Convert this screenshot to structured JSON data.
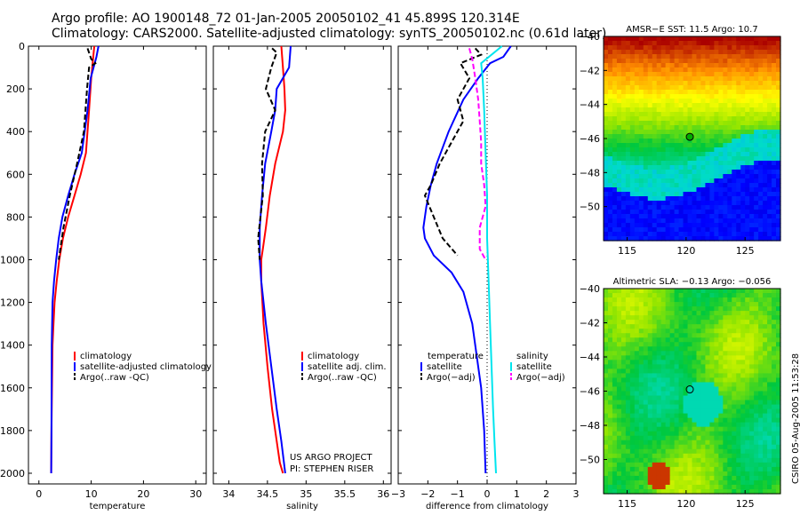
{
  "header": {
    "line1": "Argo profile: AO 1900148_72 01-Jan-2005 20050102_41 45.899S 120.314E",
    "line2": "Climatology: CARS2000. Satellite-adjusted climatology: synTS_20050102.nc (0.61d later)"
  },
  "stamp": "CSIRO 05-Aug-2005 11:53:28",
  "colors": {
    "climatology": "#ff0000",
    "satellite": "#0000ff",
    "argo": "#000000",
    "sal_sat": "#00e5ee",
    "sal_argo": "#ff00ff"
  },
  "chart_data": [
    {
      "type": "line",
      "xlabel": "temperature",
      "ylabel": "",
      "xlim": [
        -2,
        32
      ],
      "ylim": [
        2050,
        0
      ],
      "xticks": [
        "0",
        "10",
        "20",
        "30"
      ],
      "yticks": [
        "0",
        "200",
        "400",
        "600",
        "800",
        "1000",
        "1200",
        "1400",
        "1600",
        "1800",
        "2000"
      ],
      "legend": [
        "climatology",
        "satellite-adjusted climatology",
        "Argo(..raw -QC)"
      ],
      "series": [
        {
          "name": "climatology",
          "color": "#ff0000",
          "style": "solid",
          "x": [
            10.6,
            10.4,
            10.0,
            9.6,
            9.0,
            8.0,
            6.8,
            5.6,
            4.6,
            3.9,
            3.4,
            3.0,
            2.8,
            2.6,
            2.5,
            2.4,
            2.35
          ],
          "y": [
            0,
            50,
            150,
            300,
            500,
            600,
            700,
            800,
            900,
            1000,
            1100,
            1200,
            1300,
            1400,
            1600,
            1800,
            2000
          ]
        },
        {
          "name": "satellite-adjusted climatology",
          "color": "#0000ff",
          "style": "solid",
          "x": [
            11.4,
            11.0,
            9.9,
            9.3,
            8.2,
            6.8,
            5.6,
            4.5,
            3.8,
            3.3,
            2.9,
            2.6,
            2.45,
            2.4,
            2.35
          ],
          "y": [
            0,
            50,
            150,
            300,
            500,
            600,
            700,
            800,
            900,
            1000,
            1100,
            1200,
            1400,
            1800,
            2000
          ]
        },
        {
          "name": "Argo(..raw -QC)",
          "color": "#000000",
          "style": "dashed",
          "x": [
            9.3,
            10.0,
            10.8,
            9.6,
            9.2,
            8.6,
            7.3,
            5.9,
            4.7,
            3.8
          ],
          "y": [
            10,
            60,
            80,
            100,
            200,
            400,
            550,
            700,
            850,
            1000
          ]
        }
      ]
    },
    {
      "type": "line",
      "xlabel": "salinity",
      "xlim": [
        33.8,
        36.1
      ],
      "ylim": [
        2050,
        0
      ],
      "xticks": [
        "34",
        "34.5",
        "35",
        "35.5",
        "36"
      ],
      "legend": [
        "climatology",
        "satellite adj. clim.",
        "Argo(..raw -QC)"
      ],
      "annotation": [
        "US ARGO PROJECT",
        "PI: STEPHEN RISER"
      ],
      "series": [
        {
          "name": "climatology",
          "color": "#ff0000",
          "style": "solid",
          "x": [
            34.68,
            34.7,
            34.72,
            34.73,
            34.7,
            34.6,
            34.53,
            34.48,
            34.44,
            34.42,
            34.42,
            34.45,
            34.5,
            34.56,
            34.62,
            34.66,
            34.7
          ],
          "y": [
            0,
            100,
            200,
            300,
            400,
            550,
            700,
            850,
            950,
            1000,
            1100,
            1300,
            1500,
            1700,
            1850,
            1950,
            2000
          ]
        },
        {
          "name": "satellite adj. clim.",
          "color": "#0000ff",
          "style": "solid",
          "x": [
            34.8,
            34.78,
            34.62,
            34.6,
            34.55,
            34.47,
            34.43,
            34.4,
            34.4,
            34.42,
            34.48,
            34.55,
            34.62,
            34.68,
            34.73
          ],
          "y": [
            0,
            100,
            200,
            300,
            400,
            550,
            700,
            850,
            1000,
            1100,
            1300,
            1500,
            1700,
            1850,
            2000
          ]
        },
        {
          "name": "Argo(..raw -QC)",
          "color": "#000000",
          "style": "dashed",
          "x": [
            34.56,
            34.62,
            34.55,
            34.48,
            34.6,
            34.47,
            34.43,
            34.44,
            34.41,
            34.38,
            34.4
          ],
          "y": [
            10,
            30,
            100,
            200,
            300,
            400,
            550,
            700,
            800,
            900,
            1000
          ]
        }
      ]
    },
    {
      "type": "line",
      "xlabel": "difference from climatology",
      "xlim": [
        -3,
        3
      ],
      "ylim": [
        2050,
        0
      ],
      "xticks": [
        "−3",
        "−2",
        "−1",
        "0",
        "1",
        "2",
        "3"
      ],
      "legend_temperature": {
        "title": "temperature",
        "items": [
          "satellite",
          "Argo(−adj)"
        ]
      },
      "legend_salinity": {
        "title": "salinity",
        "items": [
          "satellite",
          "Argo(−adj)"
        ]
      },
      "series": [
        {
          "name": "temperature satellite",
          "color": "#0000ff",
          "style": "solid",
          "x": [
            0.8,
            0.55,
            0.1,
            -0.3,
            -0.8,
            -1.3,
            -1.7,
            -1.9,
            -2.05,
            -2.15,
            -2.1,
            -1.8,
            -1.2,
            -0.8,
            -0.5,
            -0.35,
            -0.2,
            -0.1,
            -0.05
          ],
          "y": [
            0,
            50,
            80,
            150,
            250,
            400,
            550,
            650,
            750,
            850,
            900,
            980,
            1060,
            1150,
            1300,
            1450,
            1600,
            1800,
            2000
          ]
        },
        {
          "name": "temperature Argo(−adj)",
          "color": "#000000",
          "style": "dashed",
          "x": [
            -0.4,
            -0.2,
            -0.9,
            -0.6,
            -1.0,
            -0.8,
            -1.2,
            -1.6,
            -1.9,
            -2.1,
            -1.8,
            -1.5,
            -1.0
          ],
          "y": [
            10,
            40,
            80,
            150,
            250,
            350,
            450,
            550,
            650,
            700,
            800,
            900,
            980
          ]
        },
        {
          "name": "salinity satellite",
          "color": "#00e5ee",
          "style": "solid",
          "x": [
            0.5,
            -0.2,
            -0.15,
            -0.1,
            -0.05,
            0.0,
            0.0,
            0.05,
            0.1,
            0.15,
            0.2,
            0.25,
            0.3
          ],
          "y": [
            0,
            80,
            150,
            300,
            500,
            700,
            900,
            1100,
            1300,
            1500,
            1700,
            1850,
            2000
          ]
        },
        {
          "name": "salinity Argo(−adj)",
          "color": "#ff00ff",
          "style": "dashed",
          "x": [
            -0.6,
            -0.5,
            -0.4,
            -0.3,
            -0.25,
            -0.2,
            -0.2,
            -0.1,
            -0.05,
            -0.25,
            -0.25,
            -0.05
          ],
          "y": [
            10,
            60,
            150,
            250,
            350,
            450,
            550,
            650,
            750,
            850,
            950,
            1000
          ]
        }
      ]
    },
    {
      "type": "heatmap",
      "title": "AMSR−E SST: 11.5 Argo: 10.7",
      "xlim": [
        113,
        128
      ],
      "ylim": [
        -52,
        -40
      ],
      "xticks": [
        "115",
        "120",
        "125"
      ],
      "yticks": [
        "−40",
        "−42",
        "−44",
        "−46",
        "−48",
        "−50"
      ],
      "marker": {
        "lon": 120.314,
        "lat": -45.899
      }
    },
    {
      "type": "heatmap",
      "title": "Altimetric SLA: −0.13 Argo: −0.056",
      "xlim": [
        113,
        128
      ],
      "ylim": [
        -52,
        -40
      ],
      "xticks": [
        "115",
        "120",
        "125"
      ],
      "yticks": [
        "−40",
        "−42",
        "−44",
        "−46",
        "−48",
        "−50"
      ],
      "marker": {
        "lon": 120.314,
        "lat": -45.899
      }
    }
  ]
}
